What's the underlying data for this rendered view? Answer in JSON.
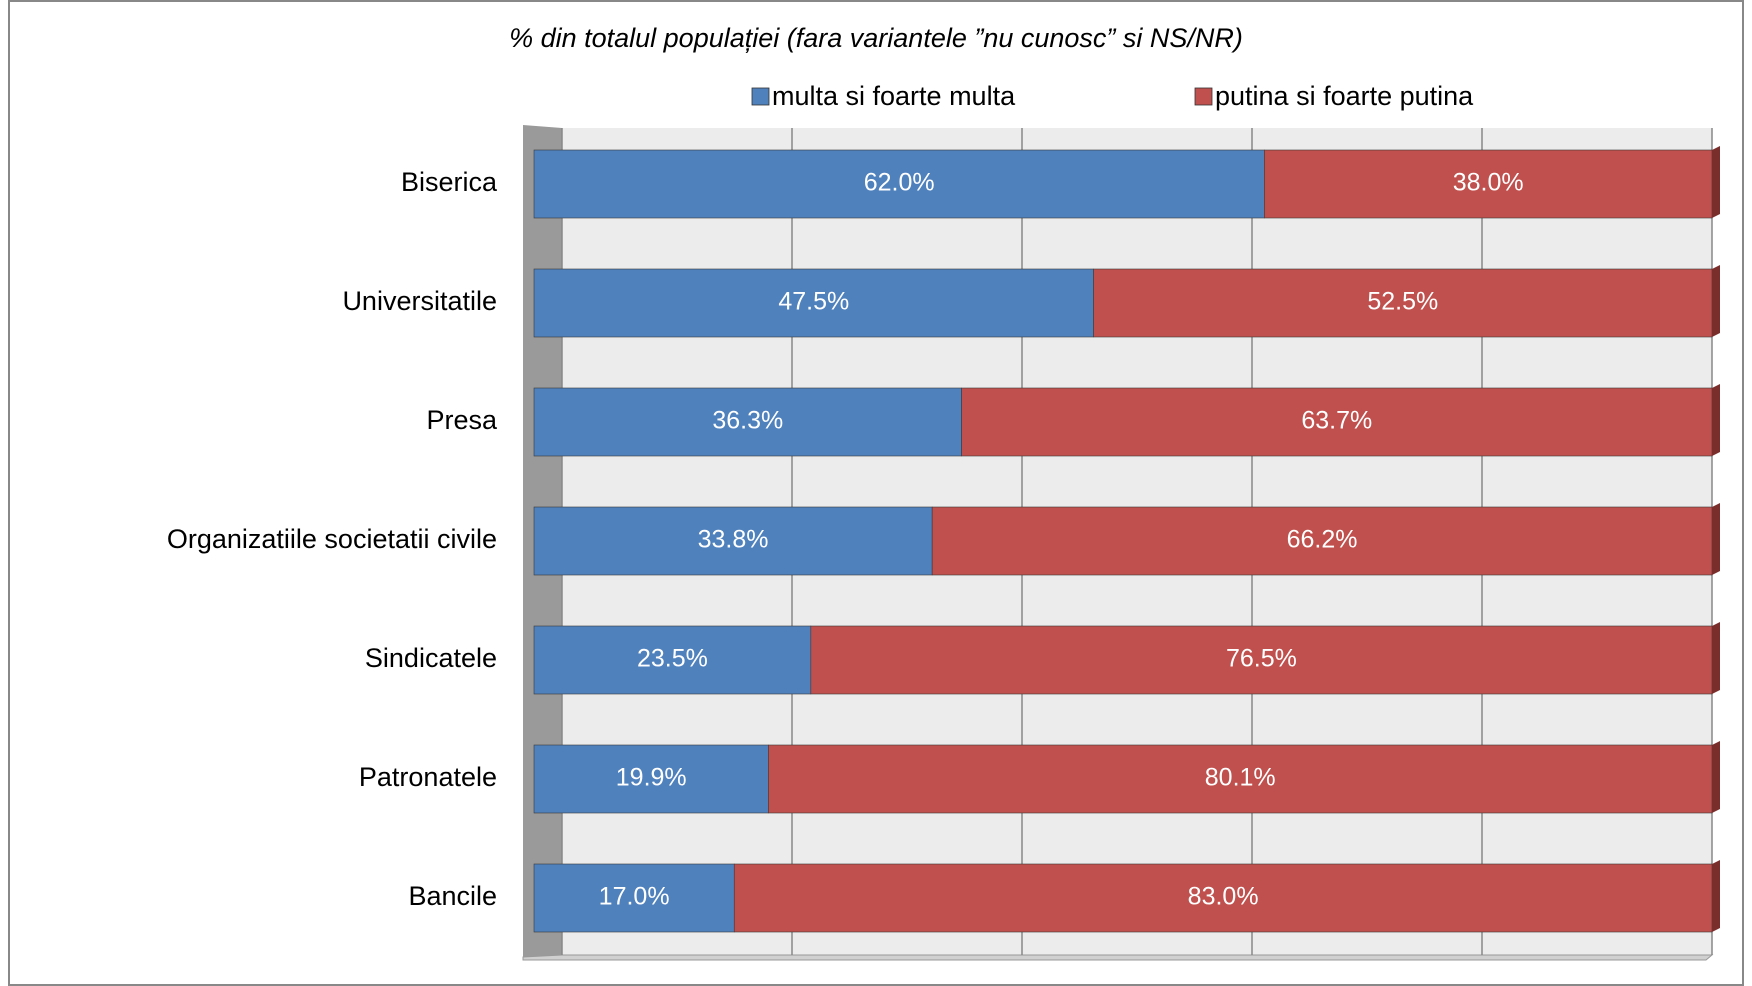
{
  "chart_data": {
    "type": "stacked_bar_horizontal",
    "title": "% din totalul populației (fara variantele ”nu cunosc” si NS/NR)",
    "categories": [
      "Biserica",
      "Universitatile",
      "Presa",
      "Organizatiile societatii civile",
      "Sindicatele",
      "Patronatele",
      "Bancile"
    ],
    "series": [
      {
        "name": "multa si foarte multa",
        "color": "#4f81bd",
        "values": [
          62.0,
          47.5,
          36.3,
          33.8,
          23.5,
          19.9,
          17.0
        ],
        "value_labels": [
          "62.0%",
          "47.5%",
          "36.3%",
          "33.8%",
          "23.5%",
          "19.9%",
          "17.0%"
        ]
      },
      {
        "name": "putina si foarte putina",
        "color": "#c0504d",
        "values": [
          38.0,
          52.5,
          63.7,
          66.2,
          76.5,
          80.1,
          83.0
        ],
        "value_labels": [
          "38.0%",
          "52.5%",
          "63.7%",
          "66.2%",
          "76.5%",
          "80.1%",
          "83.0%"
        ]
      }
    ],
    "xlim": [
      0,
      100
    ],
    "xticks": [
      0,
      20,
      40,
      60,
      80,
      100
    ],
    "grid": true,
    "legend": "top"
  }
}
